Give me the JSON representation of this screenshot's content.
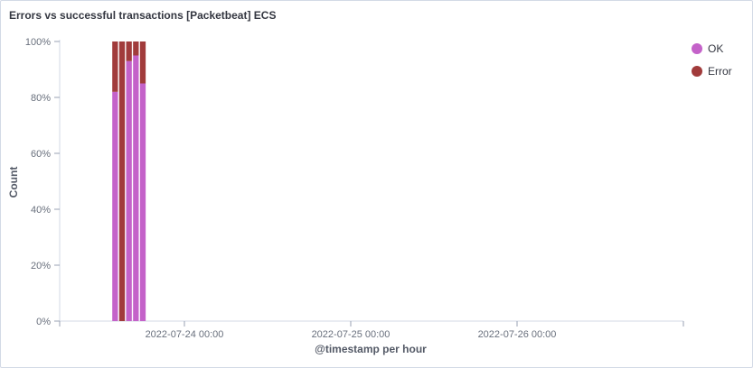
{
  "panel": {
    "title": "Errors vs successful transactions [Packetbeat] ECS"
  },
  "colors": {
    "ok": "#c462c9",
    "error": "#a13b3b",
    "axis": "#d3dae6",
    "tick": "#98a2b3"
  },
  "chart_data": {
    "type": "bar",
    "stacked": true,
    "normalized": true,
    "xlabel": "@timestamp per hour",
    "ylabel": "Count",
    "ylim": [
      0,
      100
    ],
    "y_ticks": [
      "0%",
      "20%",
      "40%",
      "60%",
      "80%",
      "100%"
    ],
    "x_ticks": [
      "2022-07-24 00:00",
      "2022-07-25 00:00",
      "2022-07-26 00:00"
    ],
    "x_range": [
      "2022-07-23 06:00",
      "2022-07-27 00:00"
    ],
    "categories": [
      "2022-07-23 14:00",
      "2022-07-23 15:00",
      "2022-07-23 16:00",
      "2022-07-23 17:00",
      "2022-07-23 18:00"
    ],
    "series": [
      {
        "name": "OK",
        "values": [
          82,
          0,
          93,
          95,
          85
        ]
      },
      {
        "name": "Error",
        "values": [
          18,
          100,
          7,
          5,
          15
        ]
      }
    ],
    "legend": "top-right",
    "grid": false
  }
}
